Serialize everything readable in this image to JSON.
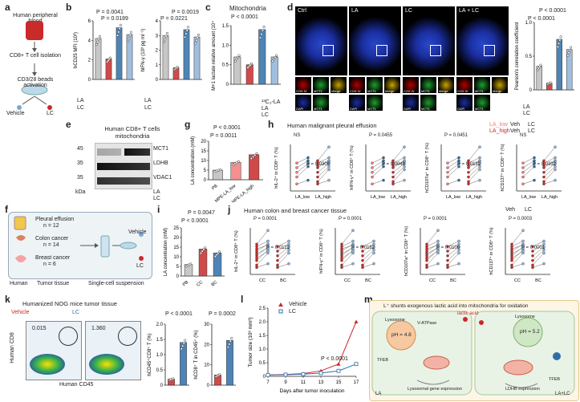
{
  "labels": {
    "a": "a",
    "b": "b",
    "c": "c",
    "d": "d",
    "e": "e",
    "f": "f",
    "g": "g",
    "h": "h",
    "i": "i",
    "j": "j",
    "k": "k",
    "l": "l",
    "m": "m"
  },
  "panel_a": {
    "step1": "Human peripheral blood",
    "step2": "CD8+ T cell isolation",
    "step3": "CD3/28 beads activation",
    "vehicle": "Vehicle",
    "lc": "LC"
  },
  "panel_b": {
    "ylabel1": "hCD25 MFI (10³)",
    "ylabel2": "hIFN-γ (10³ pg ml⁻¹)",
    "p1": "P = 0.0041",
    "p2": "P = 0.0189",
    "p3": "P = 0.0019",
    "p4": "P = 0.0221",
    "la": "LA",
    "lc": "LC"
  },
  "panel_c": {
    "title": "Mitochondria",
    "ylabel": "M+1 lactate relative amount (10⁴)",
    "p": "P < 0.0001",
    "hla": "¹³C₃-LA",
    "la": "LA",
    "lc": "LC"
  },
  "panel_d": {
    "headers": [
      "Ctrl",
      "LA",
      "LC",
      "LA + LC"
    ],
    "ylabel": "Pearson's correlation coefficient",
    "p1": "P < 0.0001",
    "p2": "P < 0.0001",
    "tiles": [
      "COX IV",
      "MCT1",
      "Merge",
      "DAPI",
      "MCT1"
    ],
    "la": "LA",
    "lc": "LC"
  },
  "panel_e": {
    "title": "Human CD8+ T cells mitochondria",
    "markers": [
      "45",
      "35",
      "35"
    ],
    "proteins": [
      "MCT1",
      "LDHB",
      "VDAC1"
    ],
    "kda": "kDa",
    "la": "LA",
    "lc": "LC"
  },
  "panel_f": {
    "groups": [
      {
        "name": "Pleural effusion",
        "n": "n = 12"
      },
      {
        "name": "Colon cancer",
        "n": "n = 14"
      },
      {
        "name": "Breast cancer",
        "n": "n = 6"
      }
    ],
    "human": "Human",
    "tumor": "Tumor tissue",
    "susp": "Single-cell suspension",
    "vehicle": "Vehicle",
    "lc": "LC"
  },
  "panel_g": {
    "ylabel": "LA concentration (mM)",
    "p1": "P < 0.0001",
    "p2": "P = 0.0011",
    "cats": [
      "PB",
      "MPE-LA_low",
      "MPE-LA_high"
    ]
  },
  "panel_h": {
    "title": "Human malignant pleural effusion",
    "legend_low": "LA_low",
    "legend_high": "LA_high",
    "veh": "Veh",
    "lc": "LC",
    "plots": [
      {
        "ylabel": "hIL-2⁺ in CD8⁺ T (%)",
        "p_low": "NS",
        "p_high": "P = 0.0308"
      },
      {
        "ylabel": "hIFN-γ⁺ in CD8⁺ T (%)",
        "p_low": "P = 0.0455",
        "p_high": "P = 0.0048"
      },
      {
        "ylabel": "hCD107a⁺ in CD8⁺ T (%)",
        "p_low": "P = 0.0451",
        "p_high": "P = 0.0132"
      },
      {
        "ylabel": "hCD137⁺ in CD8⁺ T (%)",
        "p_low": "NS",
        "p_high": "P = 0.0332"
      }
    ],
    "xlow": "LA_low",
    "xhigh": "LA_high"
  },
  "panel_i": {
    "ylabel": "LA concentration (mM)",
    "p1": "P = 0.0047",
    "p2": "P < 0.0001",
    "cats": [
      "PB",
      "CC",
      "BC"
    ]
  },
  "panel_j": {
    "title": "Human colon and breast cancer tissue",
    "veh": "Veh",
    "lc": "LC",
    "plots": [
      {
        "ylabel": "hIL-2⁺ in CD8⁺ T (%)",
        "p_cc": "P = 0.0001",
        "p_bc": "P = 0.0122"
      },
      {
        "ylabel": "hIFN-γ⁺ in CD8⁺ T (%)",
        "p_cc": "P = 0.0001",
        "p_bc": "P = 0.0182"
      },
      {
        "ylabel": "hCD107a⁺ in CD8⁺ T (%)",
        "p_cc": "P = 0.0001",
        "p_bc": "P = 0.0106"
      },
      {
        "ylabel": "hCD137⁺ in CD8⁺ T (%)",
        "p_cc": "P = 0.0003",
        "p_bc": "P = 0.0001"
      }
    ],
    "xcc": "CC",
    "xbc": "BC"
  },
  "panel_k": {
    "title": "Humanized NOG mice tumor tissue",
    "vehicle": "Vehicle",
    "lc": "LC",
    "gate_veh": "0.015",
    "gate_lc": "1.360",
    "xaxis": "Human CD45",
    "yaxis": "Human CD8",
    "ylabel1": "hCD45⁺CD8⁺ T (%)",
    "ylabel2": "hCD8⁺ T in CD45⁺ (%)",
    "p1": "P < 0.0001",
    "p2": "P = 0.0002"
  },
  "panel_m": {
    "title": "L⁺ shunts exogenous lactic acid into mitochondria for oxidation",
    "ph1": "pH = 4.8",
    "ph2": "pH = 5.2",
    "lactic": "lactic acid",
    "left_label": "LA",
    "right_label": "LA+LC",
    "lysosome": "Lysosome",
    "tfeb": "TFEB",
    "vatp": "V-ATPase",
    "ldhb": "LDHB expression",
    "lysosomal": "Lysosomal gene expression"
  },
  "chart_data": [
    {
      "type": "bar",
      "title": "CD25",
      "categories": [
        "Ctrl",
        "LA",
        "LC",
        "LA+LC"
      ],
      "values": [
        4.2,
        2.1,
        5.3,
        4.6
      ],
      "ylim": [
        0,
        6
      ],
      "yticks": [
        "0",
        "2",
        "4",
        "6"
      ],
      "ylabel": "hCD25 MFI (10³)"
    },
    {
      "type": "bar",
      "title": "IFN-γ",
      "categories": [
        "Ctrl",
        "LA",
        "LC",
        "LA+LC"
      ],
      "values": [
        3.0,
        0.8,
        3.4,
        2.9
      ],
      "ylim": [
        0,
        4
      ],
      "yticks": [
        "0",
        "1",
        "2",
        "3",
        "4"
      ],
      "ylabel": "hIFN-γ (10³ pg ml⁻¹)"
    },
    {
      "type": "bar",
      "title": "Mitochondria",
      "categories": [
        "Ctrl",
        "LA",
        "LC",
        "LA+LC"
      ],
      "values": [
        0.7,
        0.5,
        1.4,
        0.7
      ],
      "ylim": [
        0,
        1.5
      ],
      "yticks": [
        "0",
        "0.5",
        "1.0",
        "1.5"
      ],
      "ylabel": "M+1 lactate relative amount (10⁴)"
    },
    {
      "type": "bar",
      "title": "Pearson",
      "categories": [
        "Ctrl",
        "LA",
        "LC",
        "LA+LC"
      ],
      "values": [
        0.35,
        0.1,
        0.75,
        0.6
      ],
      "ylim": [
        0,
        1.0
      ],
      "yticks": [
        "0",
        "0.5",
        "1.0"
      ],
      "ylabel": "Pearson's correlation coefficient"
    },
    {
      "type": "bar",
      "title": "LA conc MPE",
      "categories": [
        "PB",
        "MPE-LA_low",
        "MPE-LA_high"
      ],
      "values": [
        5,
        9,
        13
      ],
      "ylim": [
        0,
        20
      ],
      "yticks": [
        "0",
        "5",
        "10",
        "15",
        "20"
      ],
      "ylabel": "LA concentration (mM)"
    },
    {
      "type": "bar",
      "title": "LA conc tissue",
      "categories": [
        "PB",
        "CC",
        "BC"
      ],
      "values": [
        6,
        14,
        12
      ],
      "ylim": [
        0,
        25
      ],
      "yticks": [
        "0",
        "5",
        "10",
        "15",
        "20",
        "25"
      ],
      "ylabel": "LA concentration (mM)"
    },
    {
      "type": "bar",
      "title": "hCD45+CD8+",
      "categories": [
        "Vehicle",
        "LC"
      ],
      "values": [
        0.2,
        1.4
      ],
      "ylim": [
        0,
        2.0
      ],
      "yticks": [
        "0",
        "0.5",
        "1.0",
        "1.5",
        "2.0"
      ],
      "ylabel": "hCD45⁺CD8⁺ T (%)"
    },
    {
      "type": "bar",
      "title": "hCD8+ in CD45+",
      "categories": [
        "Vehicle",
        "LC"
      ],
      "values": [
        5,
        22
      ],
      "ylim": [
        0,
        30
      ],
      "yticks": [
        "0",
        "10",
        "20",
        "30"
      ],
      "ylabel": "hCD8⁺ T in CD45⁺ (%)"
    },
    {
      "type": "line",
      "title": "Tumor growth",
      "x": [
        7,
        9,
        11,
        13,
        15,
        17
      ],
      "xticks": [
        "7",
        "9",
        "11",
        "13",
        "15",
        "17"
      ],
      "series": [
        {
          "name": "Vehicle",
          "values": [
            0.05,
            0.07,
            0.1,
            0.2,
            0.45,
            2.0
          ]
        },
        {
          "name": "LC",
          "values": [
            0.05,
            0.06,
            0.08,
            0.12,
            0.2,
            0.45
          ]
        }
      ],
      "ylim": [
        0,
        2.5
      ],
      "yticks": [
        "0",
        "0.5",
        "1.0",
        "1.5",
        "2.0",
        "2.5"
      ],
      "xlabel": "Days after tumor inoculation",
      "ylabel": "Tumor size (10³ mm³)",
      "p": "P < 0.0001"
    }
  ]
}
